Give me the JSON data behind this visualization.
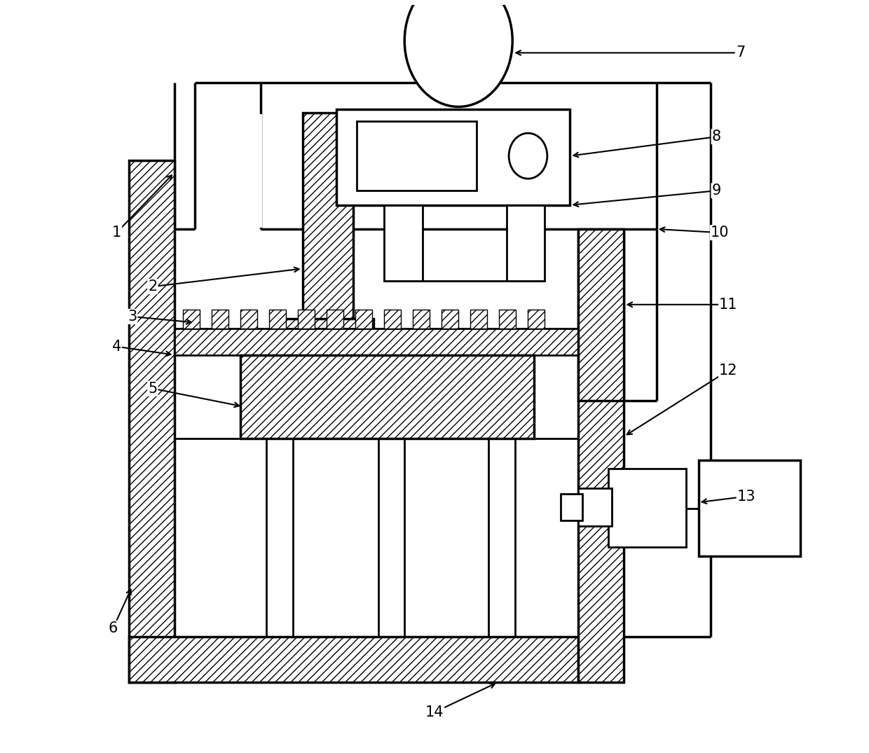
{
  "bg_color": "#ffffff",
  "line_color": "#000000",
  "fig_width": 12.4,
  "fig_height": 10.75,
  "lw": 2.0,
  "lw_thick": 2.5
}
